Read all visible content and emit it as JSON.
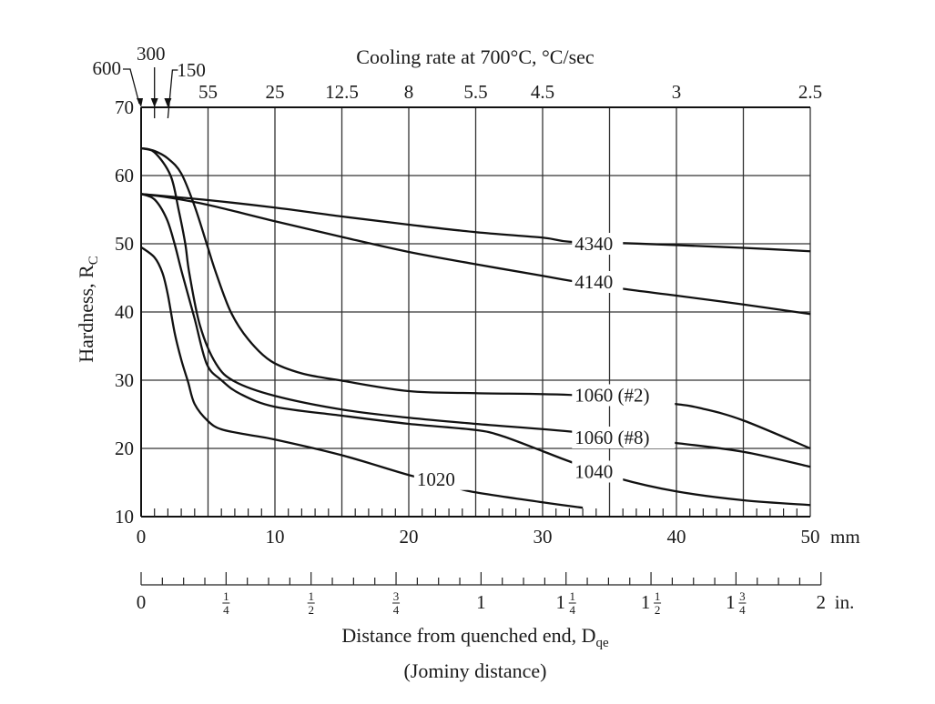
{
  "chart_data": {
    "type": "line",
    "title": "",
    "xlabel": "Distance from quenched end, D",
    "xlabel_subscript": "qe",
    "xlabel_note": "(Jominy distance)",
    "ylabel": "Hardness, R",
    "ylabel_subscript": "C",
    "xunit": "mm",
    "xlim": [
      0,
      50
    ],
    "ylim": [
      10,
      70
    ],
    "grid": true,
    "xticks": [
      0,
      10,
      20,
      30,
      40,
      50
    ],
    "yticks": [
      70,
      60,
      50,
      40,
      30,
      20,
      10
    ],
    "top_axis": {
      "title": "Cooling rate at 700°C, °C/sec",
      "ticks": [
        {
          "x": 0,
          "label": "600"
        },
        {
          "x": 1,
          "label": "300"
        },
        {
          "x": 2,
          "label": "150"
        },
        {
          "x": 5,
          "label": "55"
        },
        {
          "x": 10,
          "label": "25"
        },
        {
          "x": 15,
          "label": "12.5"
        },
        {
          "x": 20,
          "label": "8"
        },
        {
          "x": 25,
          "label": "5.5"
        },
        {
          "x": 30,
          "label": "4.5"
        },
        {
          "x": 40,
          "label": "3"
        },
        {
          "x": 50,
          "label": "2.5"
        }
      ]
    },
    "inch_axis": {
      "unit": "in.",
      "ticks": [
        {
          "in": 0,
          "label": "0"
        },
        {
          "in": 0.25,
          "label": "1/4"
        },
        {
          "in": 0.5,
          "label": "1/2"
        },
        {
          "in": 0.75,
          "label": "3/4"
        },
        {
          "in": 1,
          "label": "1"
        },
        {
          "in": 1.25,
          "label": "1 1/4"
        },
        {
          "in": 1.5,
          "label": "1 1/2"
        },
        {
          "in": 1.75,
          "label": "1 3/4"
        },
        {
          "in": 2,
          "label": "2"
        }
      ]
    },
    "series": [
      {
        "name": "4340",
        "x": [
          0,
          5,
          10,
          15,
          20,
          25,
          30,
          32,
          36,
          40,
          45,
          50
        ],
        "y": [
          57.3,
          56.4,
          55.3,
          54.0,
          52.8,
          51.7,
          50.9,
          50.3,
          50.1,
          49.8,
          49.4,
          48.9
        ]
      },
      {
        "name": "4140",
        "x": [
          0,
          2,
          5,
          10,
          15,
          20,
          25,
          30,
          32,
          36,
          40,
          45,
          50
        ],
        "y": [
          57.3,
          56.8,
          55.7,
          53.3,
          51.0,
          48.8,
          47.0,
          45.3,
          44.6,
          43.4,
          42.4,
          41.1,
          39.7
        ]
      },
      {
        "name": "1060 (#2)",
        "x": [
          0,
          1,
          2,
          3,
          4,
          4.9,
          5.6,
          6.7,
          8,
          9.7,
          12,
          14.8,
          20,
          25,
          32.5,
          39.5,
          42,
          45,
          50
        ],
        "y": [
          64,
          63.6,
          62.5,
          60.3,
          55.5,
          50,
          45.7,
          40,
          36,
          32.8,
          31,
          30,
          28.4,
          28.1,
          27.8,
          26.6,
          25.8,
          24.1,
          20
        ]
      },
      {
        "name": "1060 (#8)",
        "x": [
          0,
          1,
          2.2,
          2.8,
          3.3,
          3.6,
          4.4,
          5.6,
          7,
          10,
          15,
          20,
          25,
          32.5,
          39.5,
          45,
          50
        ],
        "y": [
          64,
          63.4,
          60,
          55,
          50,
          45.7,
          38,
          32.4,
          29.8,
          27.7,
          25.7,
          24.5,
          23.6,
          22.4,
          20.9,
          19.5,
          17.3
        ]
      },
      {
        "name": "1040",
        "x": [
          0,
          1,
          1.9,
          2.5,
          3.06,
          4,
          4.9,
          6,
          7.4,
          10,
          15,
          20,
          25,
          27,
          30,
          32,
          35.7,
          40,
          45,
          50
        ],
        "y": [
          57.3,
          56.5,
          53.7,
          50,
          45.7,
          39,
          32.4,
          30,
          28,
          26.1,
          24.8,
          23.6,
          22.7,
          21.8,
          19.6,
          18.1,
          15.6,
          13.7,
          12.4,
          11.7
        ]
      },
      {
        "name": "1020",
        "x": [
          0,
          1,
          1.6,
          2,
          2.5,
          3,
          3.5,
          4,
          5,
          6,
          8,
          10,
          15,
          20,
          22.6,
          24.6,
          30,
          33
        ],
        "y": [
          49.5,
          48,
          45.7,
          42.5,
          37,
          33,
          29.8,
          26.5,
          24,
          22.8,
          22,
          21.3,
          19,
          16.1,
          14.9,
          13.7,
          12.1,
          11.3
        ]
      }
    ]
  }
}
